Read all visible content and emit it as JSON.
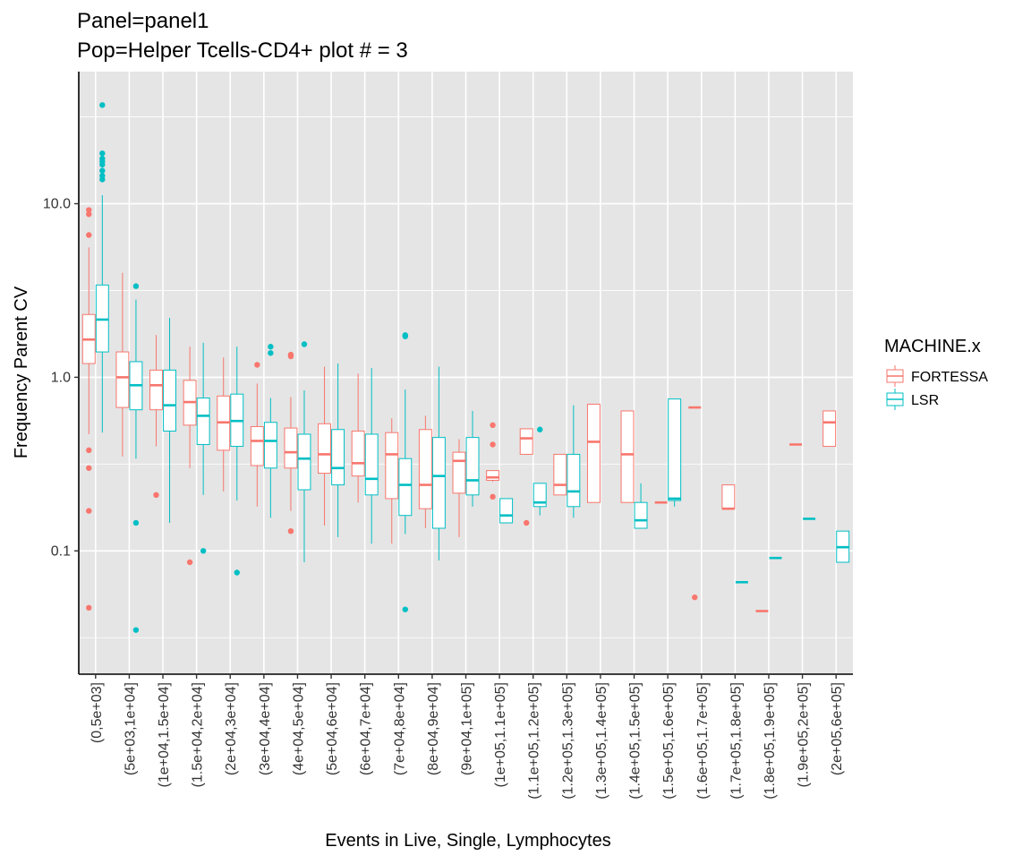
{
  "chart_data": {
    "type": "box",
    "title": "Panel=panel1",
    "subtitle": "Pop=Helper Tcells-CD4+ plot # = 3",
    "xlabel": "Events in Live, Single, Lymphocytes",
    "ylabel": "Frequency Parent CV",
    "y_scale": "log10",
    "ylim": [
      0.025,
      50
    ],
    "y_ticks": [
      0.1,
      1.0,
      10.0
    ],
    "y_tick_labels": [
      "0.1",
      "1.0",
      "10.0"
    ],
    "grid": true,
    "legend": {
      "title": "MACHINE.x",
      "position": "right"
    },
    "colors": {
      "FORTESSA": "#F8766D",
      "LSR": "#00BFC4",
      "panel": "#E5E5E5",
      "grid": "#FFFFFF"
    },
    "categories": [
      "(0,5e+03]",
      "(5e+03,1e+04]",
      "(1e+04,1.5e+04]",
      "(1.5e+04,2e+04]",
      "(2e+04,3e+04]",
      "(3e+04,4e+04]",
      "(4e+04,5e+04]",
      "(5e+04,6e+04]",
      "(6e+04,7e+04]",
      "(7e+04,8e+04]",
      "(8e+04,9e+04]",
      "(9e+04,1e+05]",
      "(1e+05,1.1e+05]",
      "(1.1e+05,1.2e+05]",
      "(1.2e+05,1.3e+05]",
      "(1.3e+05,1.4e+05]",
      "(1.4e+05,1.5e+05]",
      "(1.5e+05,1.6e+05]",
      "(1.6e+05,1.7e+05]",
      "(1.7e+05,1.8e+05]",
      "(1.8e+05,1.9e+05]",
      "(1.9e+05,2e+05]",
      "(2e+05,6e+05]"
    ],
    "series": [
      {
        "name": "FORTESSA",
        "boxes": [
          {
            "cat": 0,
            "wlo": 0.47,
            "q1": 1.2,
            "med": 1.65,
            "q3": 2.3,
            "whi": 5.6,
            "outliers": [
              9.2,
              8.7,
              6.6,
              0.38,
              0.3,
              0.17,
              0.047
            ]
          },
          {
            "cat": 1,
            "wlo": 0.35,
            "q1": 0.67,
            "med": 1.0,
            "q3": 1.4,
            "whi": 4.0,
            "outliers": []
          },
          {
            "cat": 2,
            "wlo": 0.4,
            "q1": 0.65,
            "med": 0.9,
            "q3": 1.1,
            "whi": 1.75,
            "outliers": [
              0.21
            ]
          },
          {
            "cat": 3,
            "wlo": 0.3,
            "q1": 0.53,
            "med": 0.72,
            "q3": 0.96,
            "whi": 1.5,
            "outliers": [
              0.086
            ]
          },
          {
            "cat": 4,
            "wlo": 0.22,
            "q1": 0.38,
            "med": 0.55,
            "q3": 0.78,
            "whi": 1.3,
            "outliers": []
          },
          {
            "cat": 5,
            "wlo": 0.18,
            "q1": 0.31,
            "med": 0.43,
            "q3": 0.52,
            "whi": 0.92,
            "outliers": [
              1.18
            ]
          },
          {
            "cat": 6,
            "wlo": 0.17,
            "q1": 0.3,
            "med": 0.37,
            "q3": 0.51,
            "whi": 0.77,
            "outliers": [
              1.35,
              1.32,
              0.13
            ]
          },
          {
            "cat": 7,
            "wlo": 0.14,
            "q1": 0.28,
            "med": 0.36,
            "q3": 0.54,
            "whi": 1.15,
            "outliers": []
          },
          {
            "cat": 8,
            "wlo": 0.19,
            "q1": 0.27,
            "med": 0.32,
            "q3": 0.49,
            "whi": 1.05,
            "outliers": []
          },
          {
            "cat": 9,
            "wlo": 0.11,
            "q1": 0.2,
            "med": 0.36,
            "q3": 0.48,
            "whi": 0.58,
            "outliers": []
          },
          {
            "cat": 10,
            "wlo": 0.135,
            "q1": 0.175,
            "med": 0.24,
            "q3": 0.5,
            "whi": 0.6,
            "outliers": []
          },
          {
            "cat": 11,
            "wlo": 0.12,
            "q1": 0.215,
            "med": 0.33,
            "q3": 0.37,
            "whi": 0.44,
            "outliers": []
          },
          {
            "cat": 12,
            "wlo": 0.25,
            "q1": 0.255,
            "med": 0.265,
            "q3": 0.29,
            "whi": 0.29,
            "outliers": [
              0.53,
              0.41,
              0.205
            ]
          },
          {
            "cat": 13,
            "wlo": 0.36,
            "q1": 0.36,
            "med": 0.445,
            "q3": 0.505,
            "whi": 0.505,
            "outliers": [
              0.145
            ]
          },
          {
            "cat": 14,
            "wlo": 0.21,
            "q1": 0.21,
            "med": 0.24,
            "q3": 0.36,
            "whi": 0.36,
            "outliers": []
          },
          {
            "cat": 15,
            "wlo": 0.19,
            "q1": 0.19,
            "med": 0.425,
            "q3": 0.7,
            "whi": 0.7,
            "outliers": []
          },
          {
            "cat": 16,
            "wlo": 0.19,
            "q1": 0.19,
            "med": 0.36,
            "q3": 0.64,
            "whi": 0.64,
            "outliers": []
          },
          {
            "cat": 17,
            "wlo": 0.19,
            "q1": 0.19,
            "med": 0.19,
            "q3": 0.19,
            "whi": 0.19,
            "outliers": []
          },
          {
            "cat": 18,
            "wlo": 0.67,
            "q1": 0.67,
            "med": 0.67,
            "q3": 0.67,
            "whi": 0.67,
            "outliers": [
              0.054
            ]
          },
          {
            "cat": 19,
            "wlo": 0.175,
            "q1": 0.175,
            "med": 0.175,
            "q3": 0.24,
            "whi": 0.24,
            "outliers": []
          },
          {
            "cat": 20,
            "wlo": 0.045,
            "q1": 0.045,
            "med": 0.045,
            "q3": 0.045,
            "whi": 0.045,
            "outliers": []
          },
          {
            "cat": 21,
            "wlo": 0.41,
            "q1": 0.41,
            "med": 0.41,
            "q3": 0.41,
            "whi": 0.41,
            "outliers": []
          },
          {
            "cat": 22,
            "wlo": 0.4,
            "q1": 0.4,
            "med": 0.55,
            "q3": 0.64,
            "whi": 0.64,
            "outliers": []
          }
        ]
      },
      {
        "name": "LSR",
        "boxes": [
          {
            "cat": 0,
            "wlo": 0.48,
            "q1": 1.4,
            "med": 2.15,
            "q3": 3.4,
            "whi": 11.2,
            "outliers": [
              37.0,
              19.5,
              18.2,
              17.5,
              16.8,
              15.5,
              14.5,
              13.8
            ]
          },
          {
            "cat": 1,
            "wlo": 0.34,
            "q1": 0.65,
            "med": 0.9,
            "q3": 1.23,
            "whi": 2.8,
            "outliers": [
              3.35,
              0.145,
              0.035
            ]
          },
          {
            "cat": 2,
            "wlo": 0.145,
            "q1": 0.49,
            "med": 0.69,
            "q3": 1.1,
            "whi": 2.2,
            "outliers": []
          },
          {
            "cat": 3,
            "wlo": 0.21,
            "q1": 0.41,
            "med": 0.6,
            "q3": 0.76,
            "whi": 1.58,
            "outliers": [
              0.1
            ]
          },
          {
            "cat": 4,
            "wlo": 0.195,
            "q1": 0.4,
            "med": 0.56,
            "q3": 0.8,
            "whi": 1.5,
            "outliers": [
              0.075
            ]
          },
          {
            "cat": 5,
            "wlo": 0.155,
            "q1": 0.3,
            "med": 0.43,
            "q3": 0.55,
            "whi": 0.76,
            "outliers": [
              1.5,
              1.38
            ]
          },
          {
            "cat": 6,
            "wlo": 0.086,
            "q1": 0.225,
            "med": 0.34,
            "q3": 0.47,
            "whi": 0.84,
            "outliers": [
              1.55
            ]
          },
          {
            "cat": 7,
            "wlo": 0.12,
            "q1": 0.24,
            "med": 0.3,
            "q3": 0.5,
            "whi": 1.2,
            "outliers": []
          },
          {
            "cat": 8,
            "wlo": 0.11,
            "q1": 0.21,
            "med": 0.26,
            "q3": 0.47,
            "whi": 1.13,
            "outliers": []
          },
          {
            "cat": 9,
            "wlo": 0.125,
            "q1": 0.16,
            "med": 0.24,
            "q3": 0.34,
            "whi": 0.85,
            "outliers": [
              1.75,
              1.72,
              0.046
            ]
          },
          {
            "cat": 10,
            "wlo": 0.088,
            "q1": 0.135,
            "med": 0.27,
            "q3": 0.45,
            "whi": 1.15,
            "outliers": []
          },
          {
            "cat": 11,
            "wlo": 0.18,
            "q1": 0.21,
            "med": 0.255,
            "q3": 0.45,
            "whi": 0.64,
            "outliers": []
          },
          {
            "cat": 12,
            "wlo": 0.145,
            "q1": 0.145,
            "med": 0.16,
            "q3": 0.2,
            "whi": 0.2,
            "outliers": []
          },
          {
            "cat": 13,
            "wlo": 0.16,
            "q1": 0.18,
            "med": 0.19,
            "q3": 0.245,
            "whi": 0.245,
            "outliers": [
              0.5
            ]
          },
          {
            "cat": 14,
            "wlo": 0.155,
            "q1": 0.18,
            "med": 0.22,
            "q3": 0.36,
            "whi": 0.69,
            "outliers": []
          },
          {
            "cat": 16,
            "wlo": 0.135,
            "q1": 0.135,
            "med": 0.15,
            "q3": 0.19,
            "whi": 0.245,
            "outliers": []
          },
          {
            "cat": 17,
            "wlo": 0.18,
            "q1": 0.195,
            "med": 0.2,
            "q3": 0.75,
            "whi": 0.75,
            "outliers": []
          },
          {
            "cat": 19,
            "wlo": 0.066,
            "q1": 0.066,
            "med": 0.066,
            "q3": 0.066,
            "whi": 0.066,
            "outliers": []
          },
          {
            "cat": 20,
            "wlo": 0.091,
            "q1": 0.091,
            "med": 0.091,
            "q3": 0.091,
            "whi": 0.091,
            "outliers": []
          },
          {
            "cat": 21,
            "wlo": 0.153,
            "q1": 0.153,
            "med": 0.153,
            "q3": 0.153,
            "whi": 0.153,
            "outliers": []
          },
          {
            "cat": 22,
            "wlo": 0.086,
            "q1": 0.086,
            "med": 0.105,
            "q3": 0.13,
            "whi": 0.13,
            "outliers": []
          }
        ]
      }
    ]
  }
}
